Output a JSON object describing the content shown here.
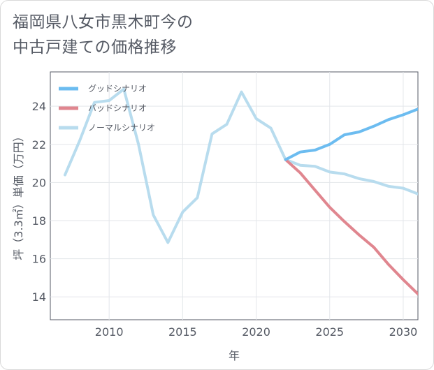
{
  "title": {
    "line1": "福岡県八女市黒木町今の",
    "line2": "中古戸建ての価格推移"
  },
  "chart_data": {
    "type": "line",
    "xlabel": "年",
    "ylabel": "坪（3.3㎡）単価（万円）",
    "xlim": [
      2006,
      2031
    ],
    "ylim": [
      12.8,
      25.8
    ],
    "xticks": [
      2010,
      2015,
      2020,
      2025,
      2030
    ],
    "yticks": [
      14,
      16,
      18,
      20,
      22,
      24
    ],
    "grid": true,
    "legend_position": "top-left",
    "series": [
      {
        "name": "グッドシナリオ",
        "color": "#6cbcf0",
        "x": [
          2022,
          2023,
          2024,
          2025,
          2026,
          2027,
          2028,
          2029,
          2030,
          2031
        ],
        "values": [
          21.2,
          21.6,
          21.7,
          22.0,
          22.5,
          22.65,
          22.95,
          23.3,
          23.55,
          23.85
        ]
      },
      {
        "name": "バッドシナリオ",
        "color": "#e0868f",
        "x": [
          2022,
          2023,
          2024,
          2025,
          2026,
          2027,
          2028,
          2029,
          2030,
          2031
        ],
        "values": [
          21.2,
          20.5,
          19.6,
          18.7,
          17.95,
          17.25,
          16.6,
          15.7,
          14.9,
          14.15
        ]
      },
      {
        "name": "ノーマルシナリオ",
        "color": "#b8dcee",
        "x": [
          2007,
          2008,
          2009,
          2010,
          2011,
          2012,
          2013,
          2014,
          2015,
          2016,
          2017,
          2018,
          2019,
          2020,
          2021,
          2022,
          2023,
          2024,
          2025,
          2026,
          2027,
          2028,
          2029,
          2030,
          2031
        ],
        "values": [
          20.4,
          22.2,
          24.2,
          24.3,
          24.9,
          22.0,
          18.3,
          16.85,
          18.45,
          19.2,
          22.55,
          23.05,
          24.75,
          23.35,
          22.85,
          21.2,
          20.9,
          20.85,
          20.55,
          20.45,
          20.2,
          20.05,
          19.8,
          19.7,
          19.4
        ]
      }
    ]
  }
}
